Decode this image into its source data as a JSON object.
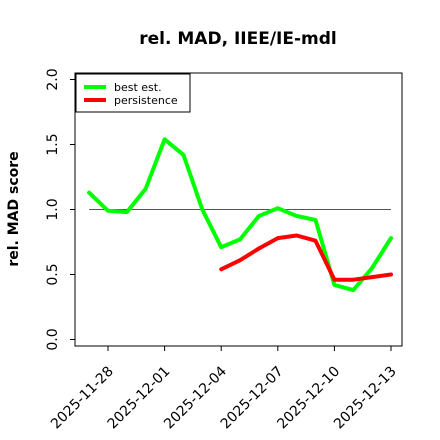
{
  "chart_data": {
    "type": "line",
    "title": "rel. MAD, IIEE/IE-mdl",
    "ylabel": "rel. MAD score",
    "xlabel": "",
    "ylim": [
      -0.05,
      2.05
    ],
    "yticks": [
      0.0,
      0.5,
      1.0,
      1.5,
      2.0
    ],
    "ytick_labels": [
      "0.0",
      "0.5",
      "1.0",
      "1.5",
      "2.0"
    ],
    "x_days": [
      "2025-11-27",
      "2025-11-28",
      "2025-11-29",
      "2025-11-30",
      "2025-12-01",
      "2025-12-02",
      "2025-12-03",
      "2025-12-04",
      "2025-12-05",
      "2025-12-06",
      "2025-12-07",
      "2025-12-08",
      "2025-12-09",
      "2025-12-10",
      "2025-12-11",
      "2025-12-12",
      "2025-12-13"
    ],
    "xlim": [
      "2025-11-26T06:00",
      "2025-12-13T14:00"
    ],
    "xticks": [
      "2025-11-28",
      "2025-12-01",
      "2025-12-04",
      "2025-12-07",
      "2025-12-10",
      "2025-12-13"
    ],
    "xtick_labels": [
      "2025-11-28",
      "2025-12-01",
      "2025-12-04",
      "2025-12-07",
      "2025-12-10",
      "2025-12-13"
    ],
    "reference_line": 1.0,
    "legend_position": "upper-left",
    "series": [
      {
        "name": "best est.",
        "color": "#00ff00",
        "values": [
          1.13,
          0.99,
          0.98,
          1.16,
          1.54,
          1.42,
          1.0,
          0.71,
          0.77,
          0.95,
          1.01,
          0.95,
          0.92,
          0.42,
          0.38,
          0.55,
          0.78
        ]
      },
      {
        "name": "persistence",
        "color": "#ff0000",
        "values": [
          null,
          null,
          null,
          null,
          null,
          null,
          null,
          0.54,
          0.61,
          0.7,
          0.78,
          0.8,
          0.76,
          0.46,
          0.46,
          0.48,
          0.5
        ]
      }
    ]
  }
}
